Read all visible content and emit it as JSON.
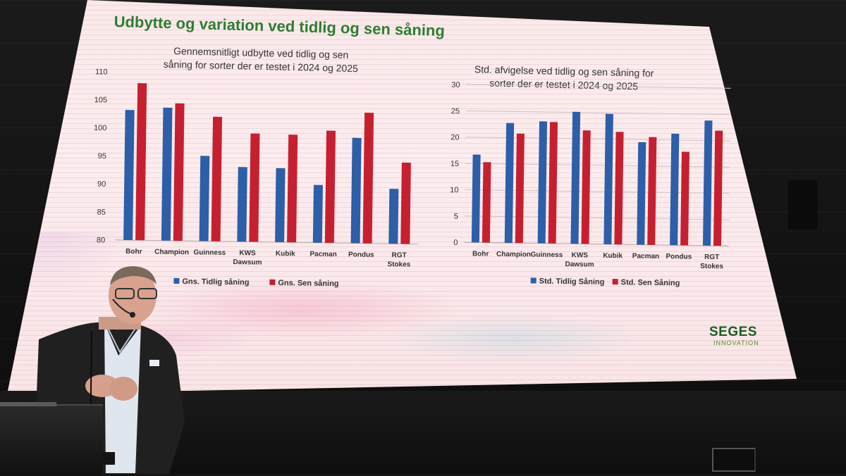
{
  "slide": {
    "title": "Udbytte og variation ved tidlig og sen såning",
    "logo_main": "SEGES",
    "logo_sub": "INNOVATION"
  },
  "colors": {
    "early": "#2d5ea8",
    "late": "#c62030",
    "title_green": "#2e7d32",
    "screen_bg": "#fcecee"
  },
  "chart_data": [
    {
      "type": "bar",
      "title": "Gennemsnitligt udbytte ved tidlig og sen såning for sorter der er testet i 2024 og 2025",
      "title_lines": [
        "Gennemsnitligt udbytte ved tidlig og sen",
        "såning for sorter der er testet i 2024 og 2025"
      ],
      "categories": [
        "Bohr",
        "Champion",
        "Guinness",
        "KWS Dawsum",
        "Kubik",
        "Pacman",
        "Pondus",
        "RGT Stokes"
      ],
      "category_lines": [
        [
          "Bohr"
        ],
        [
          "Champion"
        ],
        [
          "Guinness"
        ],
        [
          "KWS",
          "Dawsum"
        ],
        [
          "Kubik"
        ],
        [
          "Pacman"
        ],
        [
          "Pondus"
        ],
        [
          "RGT",
          "Stokes"
        ]
      ],
      "series": [
        {
          "name": "Gns. Tidlig såning",
          "values": [
            103.2,
            103.7,
            95.2,
            93.3,
            93.2,
            90.3,
            98.8,
            89.8
          ]
        },
        {
          "name": "Gns. Sen såning",
          "values": [
            108.0,
            104.5,
            102.2,
            99.3,
            99.2,
            100.0,
            103.3,
            94.5
          ]
        }
      ],
      "ylim": [
        80,
        110
      ],
      "yticks": [
        80,
        85,
        90,
        95,
        100,
        105,
        110
      ],
      "legend": "bottom",
      "grid": false
    },
    {
      "type": "bar",
      "title": "Std. afvigelse ved tidlig og sen såning for sorter der er testet i 2024 og 2025",
      "title_lines": [
        "Std. afvigelse ved tidlig og sen såning for",
        "sorter der er testet i 2024 og 2025"
      ],
      "categories": [
        "Bohr",
        "Champion",
        "Guinness",
        "KWS Dawsum",
        "Kubik",
        "Pacman",
        "Pondus",
        "RGT Stokes"
      ],
      "category_lines": [
        [
          "Bohr"
        ],
        [
          "Champion"
        ],
        [
          "Guinness"
        ],
        [
          "KWS",
          "Dawsum"
        ],
        [
          "Kubik"
        ],
        [
          "Pacman"
        ],
        [
          "Pondus"
        ],
        [
          "RGT",
          "Stokes"
        ]
      ],
      "series": [
        {
          "name": "Std. Tidlig Såning",
          "values": [
            16.7,
            22.8,
            23.2,
            25.1,
            24.8,
            19.5,
            21.2,
            23.8
          ]
        },
        {
          "name": "Std. Sen Såning",
          "values": [
            15.3,
            20.8,
            23.1,
            21.6,
            21.4,
            20.5,
            17.8,
            21.9
          ]
        }
      ],
      "ylim": [
        0,
        30
      ],
      "yticks": [
        0,
        5,
        10,
        15,
        20,
        25,
        30
      ],
      "legend": "bottom",
      "grid": true
    }
  ]
}
